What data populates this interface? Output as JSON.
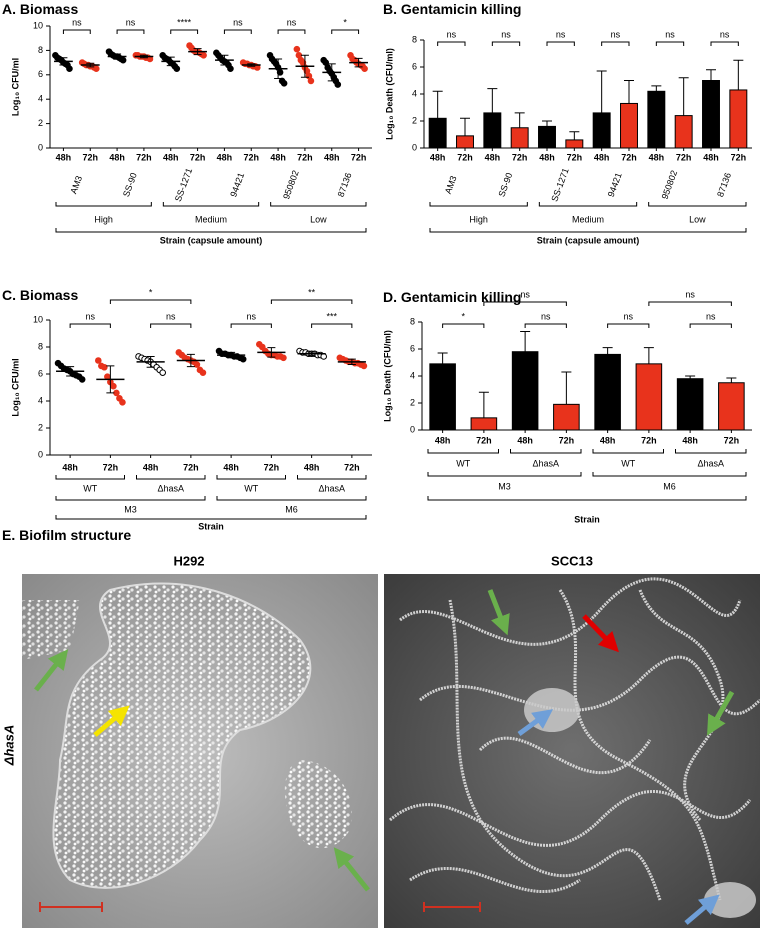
{
  "chart_data": [
    {
      "type": "dot",
      "title": "A. Biomass",
      "y_label": "Log₁₀ CFU/ml",
      "ylim": [
        0,
        10
      ],
      "yticks": [
        0,
        2,
        4,
        6,
        8,
        10
      ],
      "categories": [
        "48h",
        "72h",
        "48h",
        "72h",
        "48h",
        "72h",
        "48h",
        "72h",
        "48h",
        "72h",
        "48h",
        "72h"
      ],
      "groups": [
        [
          "AM3",
          "SS-90",
          "SS-1271",
          "94421",
          "950802",
          "87136"
        ],
        [
          "High",
          "Medium",
          "Low"
        ]
      ],
      "x_label": "Strain (capsule amount)",
      "colors": [
        "#000000",
        "#e8331c"
      ],
      "values": [
        [
          7.6,
          7.4,
          7.3,
          7.2,
          7.0,
          6.9,
          6.8,
          6.5
        ],
        [
          7.0,
          6.9,
          6.8,
          6.8,
          6.7,
          6.7,
          6.6,
          6.5
        ],
        [
          7.9,
          7.7,
          7.6,
          7.5,
          7.5,
          7.4,
          7.3,
          7.2
        ],
        [
          7.6,
          7.6,
          7.5,
          7.5,
          7.5,
          7.4,
          7.4,
          7.3
        ],
        [
          7.6,
          7.4,
          7.3,
          7.2,
          7.0,
          6.9,
          6.7,
          6.5
        ],
        [
          8.4,
          8.2,
          8.0,
          7.9,
          7.9,
          7.8,
          7.7,
          7.6
        ],
        [
          7.8,
          7.6,
          7.4,
          7.2,
          7.1,
          7.0,
          6.8,
          6.5
        ],
        [
          7.0,
          6.9,
          6.9,
          6.8,
          6.8,
          6.7,
          6.7,
          6.6
        ],
        [
          7.6,
          7.3,
          7.1,
          6.9,
          6.6,
          6.2,
          5.5,
          5.3
        ],
        [
          8.1,
          7.6,
          7.2,
          7.0,
          6.6,
          6.3,
          5.9,
          5.5
        ],
        [
          7.2,
          7.0,
          6.6,
          6.3,
          6.1,
          5.8,
          5.5,
          5.2
        ],
        [
          7.6,
          7.3,
          7.2,
          7.0,
          6.9,
          6.8,
          6.7,
          6.5
        ]
      ],
      "means": [
        7.1,
        6.8,
        7.5,
        7.5,
        7.1,
        7.9,
        7.2,
        6.8,
        6.5,
        6.7,
        6.2,
        7.0
      ],
      "sd": [
        0.3,
        0.15,
        0.2,
        0.1,
        0.35,
        0.25,
        0.4,
        0.1,
        0.8,
        0.9,
        0.7,
        0.35
      ],
      "comparisons": [
        {
          "between": [
            0,
            1
          ],
          "label": "ns"
        },
        {
          "between": [
            2,
            3
          ],
          "label": "ns"
        },
        {
          "between": [
            4,
            5
          ],
          "label": "****"
        },
        {
          "between": [
            6,
            7
          ],
          "label": "ns"
        },
        {
          "between": [
            8,
            9
          ],
          "label": "ns"
        },
        {
          "between": [
            10,
            11
          ],
          "label": "*"
        }
      ]
    },
    {
      "type": "bar",
      "title": "B. Gentamicin killing",
      "y_label": "Log₁₀ Death (CFU/ml)",
      "ylim": [
        0,
        8
      ],
      "yticks": [
        0,
        2,
        4,
        6,
        8
      ],
      "categories": [
        "48h",
        "72h",
        "48h",
        "72h",
        "48h",
        "72h",
        "48h",
        "72h",
        "48h",
        "72h",
        "48h",
        "72h"
      ],
      "groups": [
        [
          "AM3",
          "SS-90",
          "SS-1271",
          "94421",
          "950802",
          "87136"
        ],
        [
          "High",
          "Medium",
          "Low"
        ]
      ],
      "x_label": "Strain (capsule amount)",
      "colors": [
        "#000000",
        "#e8331c"
      ],
      "values": [
        2.2,
        0.9,
        2.6,
        1.5,
        1.6,
        0.6,
        2.6,
        3.3,
        4.2,
        2.4,
        5.0,
        4.3
      ],
      "errors": [
        2.0,
        1.3,
        1.8,
        1.1,
        0.4,
        0.6,
        3.1,
        1.7,
        0.4,
        2.8,
        0.8,
        2.2
      ],
      "comparisons": [
        {
          "between": [
            0,
            1
          ],
          "label": "ns"
        },
        {
          "between": [
            2,
            3
          ],
          "label": "ns"
        },
        {
          "between": [
            4,
            5
          ],
          "label": "ns"
        },
        {
          "between": [
            6,
            7
          ],
          "label": "ns"
        },
        {
          "between": [
            8,
            9
          ],
          "label": "ns"
        },
        {
          "between": [
            10,
            11
          ],
          "label": "ns"
        }
      ]
    },
    {
      "type": "dot",
      "title": "C. Biomass",
      "y_label": "Log₁₀ CFU/ml",
      "ylim": [
        0,
        10
      ],
      "yticks": [
        0,
        2,
        4,
        6,
        8,
        10
      ],
      "categories": [
        "48h",
        "72h",
        "48h",
        "72h",
        "48h",
        "72h",
        "48h",
        "72h"
      ],
      "groups": [
        [
          "WT",
          "ΔhasA",
          "WT",
          "ΔhasA"
        ],
        [
          "M3",
          "M6"
        ]
      ],
      "x_label": "Strain",
      "colors": [
        "#000000",
        "#e8331c"
      ],
      "hollow": [
        false,
        false,
        true,
        false,
        false,
        false,
        true,
        false
      ],
      "values": [
        [
          6.8,
          6.6,
          6.4,
          6.3,
          6.2,
          6.0,
          5.9,
          5.8,
          5.6
        ],
        [
          7.0,
          6.6,
          6.5,
          5.8,
          5.4,
          5.1,
          4.6,
          4.2,
          3.9
        ],
        [
          7.3,
          7.2,
          7.1,
          7.0,
          6.9,
          6.7,
          6.5,
          6.3,
          6.1
        ],
        [
          7.6,
          7.4,
          7.2,
          7.1,
          7.0,
          6.9,
          6.7,
          6.3,
          6.1
        ],
        [
          7.7,
          7.5,
          7.5,
          7.4,
          7.4,
          7.3,
          7.3,
          7.2,
          7.1
        ],
        [
          8.2,
          8.0,
          7.7,
          7.5,
          7.4,
          7.4,
          7.3,
          7.3,
          7.2
        ],
        [
          7.7,
          7.6,
          7.6,
          7.5,
          7.5,
          7.5,
          7.4,
          7.4,
          7.3
        ],
        [
          7.2,
          7.1,
          7.0,
          6.9,
          6.9,
          6.8,
          6.8,
          6.7,
          6.6
        ]
      ],
      "means": [
        6.2,
        5.6,
        6.9,
        7.0,
        7.4,
        7.6,
        7.5,
        6.9
      ],
      "sd": [
        0.35,
        1.0,
        0.4,
        0.45,
        0.2,
        0.35,
        0.12,
        0.2
      ],
      "comparisons": [
        {
          "between": [
            0,
            1
          ],
          "label": "ns"
        },
        {
          "between": [
            2,
            3
          ],
          "label": "ns"
        },
        {
          "between": [
            4,
            5
          ],
          "label": "ns"
        },
        {
          "between": [
            6,
            7
          ],
          "label": "***"
        },
        {
          "between": [
            1,
            3
          ],
          "label": "*"
        },
        {
          "between": [
            5,
            7
          ],
          "label": "**"
        }
      ]
    },
    {
      "type": "bar",
      "title": "D. Gentamicin killing",
      "y_label": "Log₁₀ Death (CFU/ml)",
      "ylim": [
        0,
        8
      ],
      "yticks": [
        0,
        2,
        4,
        6,
        8
      ],
      "categories": [
        "48h",
        "72h",
        "48h",
        "72h",
        "48h",
        "72h",
        "48h",
        "72h"
      ],
      "groups": [
        [
          "WT",
          "ΔhasA",
          "WT",
          "ΔhasA"
        ],
        [
          "M3",
          "M6"
        ]
      ],
      "x_label": "Strain",
      "colors": [
        "#000000",
        "#e8331c"
      ],
      "values": [
        4.9,
        0.9,
        5.8,
        1.9,
        5.6,
        4.9,
        3.8,
        3.5
      ],
      "errors": [
        0.8,
        1.9,
        1.5,
        2.4,
        0.5,
        1.2,
        0.2,
        0.35
      ],
      "comparisons": [
        {
          "between": [
            0,
            1
          ],
          "label": "*"
        },
        {
          "between": [
            2,
            3
          ],
          "label": "ns"
        },
        {
          "between": [
            4,
            5
          ],
          "label": "ns"
        },
        {
          "between": [
            6,
            7
          ],
          "label": "ns"
        },
        {
          "between": [
            1,
            3
          ],
          "label": "ns"
        },
        {
          "between": [
            5,
            7
          ],
          "label": "ns"
        }
      ]
    }
  ],
  "panel_e": {
    "title": "E. Biofilm structure",
    "columns": [
      "H292",
      "SCC13"
    ],
    "row_label": "ΔhasA"
  }
}
